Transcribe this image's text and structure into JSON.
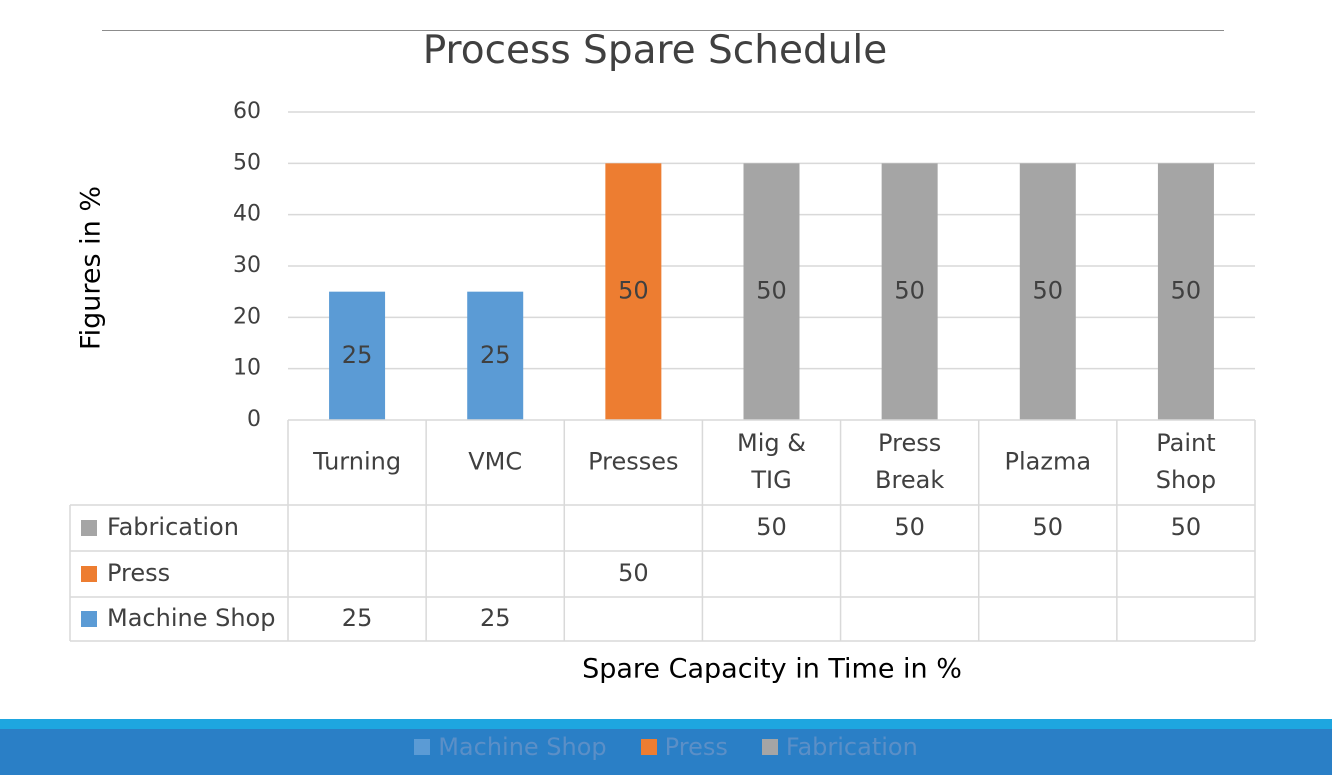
{
  "chart_data": {
    "type": "bar",
    "title": "Process Spare Schedule",
    "xlabel": "Spare Capacity in Time in %",
    "ylabel": "Figures in %",
    "ylim": [
      0,
      60
    ],
    "yticks": [
      0,
      10,
      20,
      30,
      40,
      50,
      60
    ],
    "grid": true,
    "categories": [
      [
        "Turning"
      ],
      [
        "VMC"
      ],
      [
        "Presses"
      ],
      [
        "Mig &",
        "TIG"
      ],
      [
        "Press",
        "Break"
      ],
      [
        "Plazma"
      ],
      [
        "Paint",
        "Shop"
      ]
    ],
    "series": [
      {
        "name": "Machine Shop",
        "color": "#5b9bd5",
        "values": [
          25,
          25,
          null,
          null,
          null,
          null,
          null
        ]
      },
      {
        "name": "Press",
        "color": "#ed7d31",
        "values": [
          null,
          null,
          50,
          null,
          null,
          null,
          null
        ]
      },
      {
        "name": "Fabrication",
        "color": "#a5a5a5",
        "values": [
          null,
          null,
          null,
          50,
          50,
          50,
          50
        ]
      }
    ],
    "data_table_rows": [
      "Fabrication",
      "Press",
      "Machine Shop"
    ],
    "legend": {
      "placement": "bottom",
      "entries": [
        "Machine Shop",
        "Press",
        "Fabrication"
      ]
    }
  }
}
